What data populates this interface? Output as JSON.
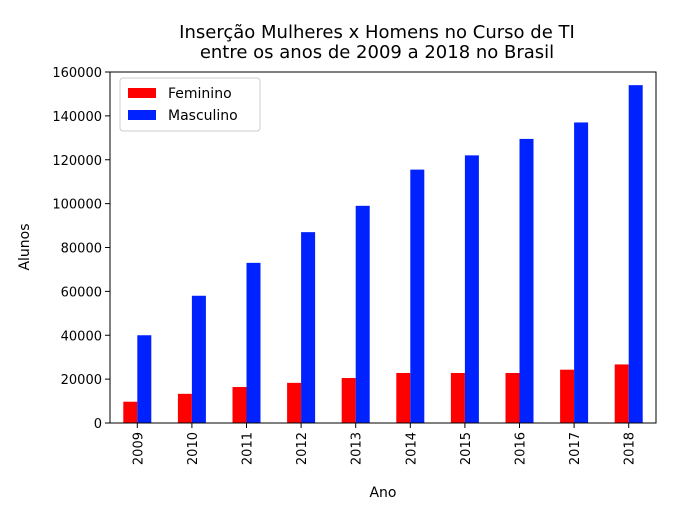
{
  "chart_data": {
    "type": "bar",
    "title": [
      "Inserção Mulheres x Homens no Curso de TI",
      "entre os anos de 2009 a 2018 no Brasil"
    ],
    "xlabel": "Ano",
    "ylabel": "Alunos",
    "categories": [
      "2009",
      "2010",
      "2011",
      "2012",
      "2013",
      "2014",
      "2015",
      "2016",
      "2017",
      "2018"
    ],
    "series": [
      {
        "name": "Feminino",
        "color": "#ff0000",
        "values": [
          9700,
          13300,
          16400,
          18300,
          20500,
          22800,
          22800,
          22800,
          24300,
          26700
        ]
      },
      {
        "name": "Masculino",
        "color": "#0022ff",
        "values": [
          40000,
          58000,
          73000,
          87000,
          99000,
          115500,
          122000,
          129500,
          137000,
          154000
        ]
      }
    ],
    "ylim": [
      0,
      160000
    ],
    "yticks": [
      0,
      20000,
      40000,
      60000,
      80000,
      100000,
      120000,
      140000,
      160000
    ],
    "ytick_labels": [
      "0",
      "20000",
      "40000",
      "60000",
      "80000",
      "100000",
      "120000",
      "140000",
      "160000"
    ],
    "legend_position": "top-left",
    "grid": false
  }
}
